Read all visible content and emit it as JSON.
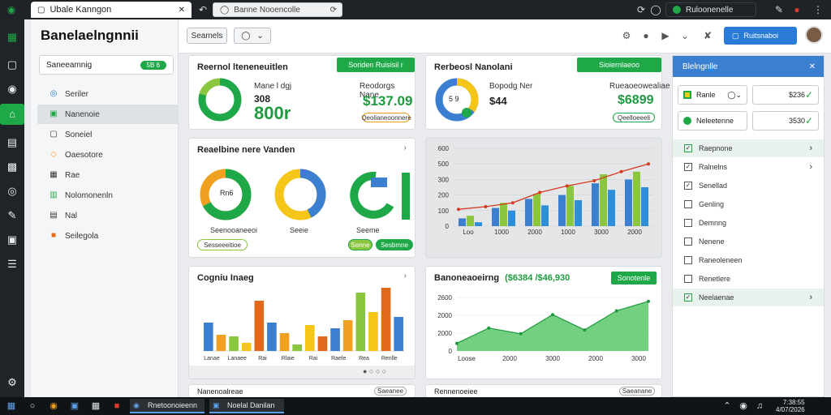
{
  "browser": {
    "tab1_title": "Ubale Kanngon",
    "url": "Banne Nooencolle",
    "profile_label": "Ruloonenelle"
  },
  "sidebar": {
    "app_title": "Banelaelngnnii",
    "search_label": "Saneeamnig",
    "search_badge": "5B 6",
    "items": [
      {
        "label": "Seriler",
        "icon": "circle-icon",
        "color": "#2a7bd8"
      },
      {
        "label": "Nanenoie",
        "icon": "folder-icon",
        "color": "#1ea847"
      },
      {
        "label": "Soneiel",
        "icon": "chat-icon",
        "color": "#333333"
      },
      {
        "label": "Oaesotore",
        "icon": "tag-icon",
        "color": "#f0a020"
      },
      {
        "label": "Rae",
        "icon": "grid-icon",
        "color": "#333333"
      },
      {
        "label": "Nolomonenln",
        "icon": "chart-icon",
        "color": "#1ea847"
      },
      {
        "label": "Nal",
        "icon": "doc-icon",
        "color": "#333333"
      },
      {
        "label": "Seilegola",
        "icon": "box-icon",
        "color": "#e06a1a"
      }
    ]
  },
  "header": {
    "segment_button": "Seamels",
    "sync_button": "Ruitsnaboi"
  },
  "card1": {
    "title": "Reernol lteneneuitlen",
    "tag": "Soriden Ruisisil r",
    "left_label": "Mane l dgj",
    "left_value_small": "308",
    "left_value_big": "800r",
    "right_label": "Reodorgs Nane",
    "right_value": "$137.09",
    "pill": "Qeolianeoonnere"
  },
  "card2": {
    "title": "Rerbeosl Nanolani",
    "tag": "Sioiernlaeoo",
    "donut_center": "5 9",
    "left_label": "Bopodg Ner",
    "left_value": "$44",
    "right_label": "Rueaoeowealiae",
    "right_value": "$6899",
    "pill": "Qeelloeeeli"
  },
  "card3": {
    "title": "Reaelbine nere Vanden",
    "donut1_center": "Rn6",
    "donut1_label": "Seenooaneeoi",
    "donut2_label": "Seeie",
    "donut3_label": "Seeme",
    "pill1": "Sesseeeitioe",
    "pill2": "Senne",
    "pill3": "Sesbmne"
  },
  "card4": {
    "title": "Cogniu Inaeg",
    "x_labels": [
      "Lanae",
      "Lanaee",
      "Rai",
      "Rlaie",
      "Rai",
      "Raele",
      "Rea",
      "Renlle"
    ]
  },
  "card5": {
    "title": "Banoneaoeirng",
    "title_value": "($6384 /$46,930",
    "tag": "Sonotenle"
  },
  "card6": {
    "title": "Nanenoalreae",
    "pill": "Saeanee"
  },
  "card7": {
    "title": "Rennenoeiee",
    "pill": "Saeanane"
  },
  "chart_top": {
    "type": "bar",
    "y_ticks": [
      "600",
      "500",
      "300",
      "200",
      "100",
      "0"
    ],
    "x_labels": [
      "Loo",
      "1000",
      "2000",
      "1000",
      "3000",
      "2000"
    ],
    "series": [
      {
        "color": "#3b7fd1",
        "values": [
          60,
          140,
          210,
          240,
          330,
          360
        ]
      },
      {
        "color": "#8bc63f",
        "values": [
          80,
          180,
          250,
          310,
          400,
          420
        ]
      },
      {
        "color": "#2e8fd8",
        "values": [
          30,
          120,
          160,
          200,
          280,
          300
        ]
      }
    ],
    "line": {
      "color": "#d63a1f",
      "values": [
        130,
        150,
        180,
        260,
        310,
        350,
        420,
        480
      ]
    }
  },
  "chart_bottom": {
    "type": "area",
    "y_ticks": [
      "2600",
      "2000",
      "2000",
      "0"
    ],
    "x_labels": [
      "Loose",
      "2000",
      "3000",
      "2000",
      "3000"
    ],
    "values": [
      400,
      1200,
      900,
      1900,
      1100,
      2100,
      2600
    ],
    "ymax": 2800,
    "color": "#5ac86a"
  },
  "chart_small": {
    "type": "bar",
    "colors": [
      "#3b7fd1",
      "#f0a020",
      "#8bc63f",
      "#f5c518",
      "#e06a1a"
    ],
    "values": [
      35,
      20,
      18,
      10,
      62,
      35,
      22,
      8,
      32,
      18,
      28,
      38,
      72,
      48,
      78,
      42
    ]
  },
  "right_panel": {
    "title": "Blelngnlle",
    "row1_label": "Ranle",
    "row1_value": "$236",
    "row2_label": "Neleetenne",
    "row2_value": "3530",
    "list": [
      {
        "label": "Raepnone",
        "checked": true,
        "highlight": true,
        "chevron": true
      },
      {
        "label": "Ralnelns",
        "checked": true,
        "highlight": false,
        "chevron": true
      },
      {
        "label": "Senellad",
        "checked": true,
        "highlight": false,
        "chevron": false
      },
      {
        "label": "Genling",
        "checked": false,
        "highlight": false,
        "chevron": false
      },
      {
        "label": "Demnng",
        "checked": false,
        "highlight": false,
        "chevron": false
      },
      {
        "label": "Nenene",
        "checked": false,
        "highlight": false,
        "chevron": false
      },
      {
        "label": "Raneoleneen",
        "checked": false,
        "highlight": false,
        "chevron": false
      },
      {
        "label": "Renetlere",
        "checked": false,
        "highlight": false,
        "chevron": false
      },
      {
        "label": "Neelaenae",
        "checked": true,
        "highlight": true,
        "chevron": true
      }
    ]
  },
  "taskbar": {
    "app1": "Rnetoonoieenn",
    "app2": "Noelal Danilan",
    "clock_time": "7:38:55",
    "clock_date": "4/07/2026"
  }
}
